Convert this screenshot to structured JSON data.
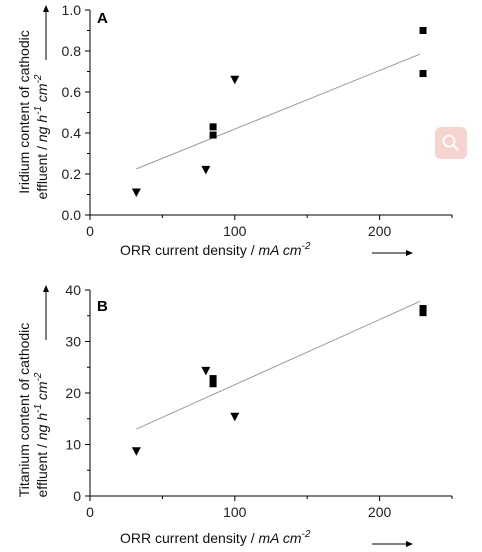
{
  "chart_data": [
    {
      "type": "scatter",
      "panel_label": "A",
      "ylabel_lines": [
        "Iridium content of cathodic",
        "effluent / ng h-1 cm-2"
      ],
      "ylabel_line1": "Iridium content of cathodic",
      "ylabel_line2_text": "effluent / ",
      "ylabel_line2_italic": "ng h",
      "ylabel_line2_sup1": "-1",
      "ylabel_line2_mid": " cm",
      "ylabel_line2_sup2": "-2",
      "xlabel_text": "ORR current density / ",
      "xlabel_italic": "mA cm",
      "xlabel_sup": "-2",
      "xlim": [
        0,
        250
      ],
      "ylim": [
        0.0,
        1.0
      ],
      "xticks": [
        "0",
        "100",
        "200"
      ],
      "yticks": [
        "0.0",
        "0.2",
        "0.4",
        "0.6",
        "0.8",
        "1.0"
      ],
      "series": [
        {
          "marker": "square",
          "points": [
            [
              85,
              0.43
            ],
            [
              85,
              0.39
            ],
            [
              230,
              0.9
            ],
            [
              230,
              0.69
            ]
          ]
        },
        {
          "marker": "triangle-down",
          "points": [
            [
              32,
              0.11
            ],
            [
              80,
              0.22
            ],
            [
              100,
              0.66
            ]
          ]
        }
      ],
      "fit_line": [
        [
          32,
          0.225
        ],
        [
          228,
          0.785
        ]
      ]
    },
    {
      "type": "scatter",
      "panel_label": "B",
      "ylabel_line1": "Titanium content of cathodic",
      "ylabel_line2_text": "effluent / ",
      "ylabel_line2_italic": "ng h",
      "ylabel_line2_sup1": "-1",
      "ylabel_line2_mid": " cm",
      "ylabel_line2_sup2": "-2",
      "xlabel_text": "ORR current density / ",
      "xlabel_italic": "mA cm",
      "xlabel_sup": "-2",
      "xlim": [
        0,
        250
      ],
      "ylim": [
        0,
        40
      ],
      "xticks": [
        "0",
        "100",
        "200"
      ],
      "yticks": [
        "0",
        "10",
        "20",
        "30",
        "40"
      ],
      "series": [
        {
          "marker": "square",
          "points": [
            [
              85,
              22.8
            ],
            [
              85,
              21.8
            ],
            [
              230,
              36.4
            ],
            [
              230,
              35.6
            ]
          ]
        },
        {
          "marker": "triangle-down",
          "points": [
            [
              32,
              8.7
            ],
            [
              80,
              24.3
            ],
            [
              100,
              15.4
            ]
          ]
        }
      ],
      "fit_line": [
        [
          32,
          13.0
        ],
        [
          228,
          37.8
        ]
      ]
    }
  ],
  "ui": {
    "zoom_icon": "search-icon"
  }
}
